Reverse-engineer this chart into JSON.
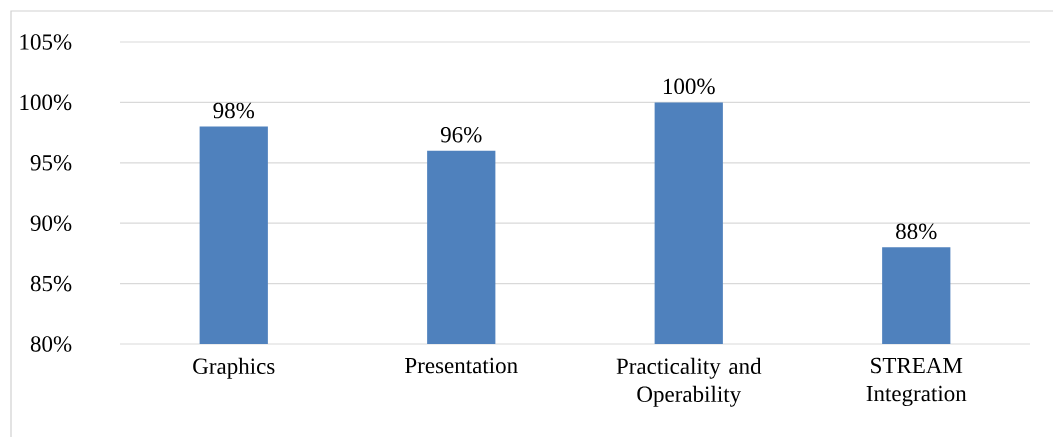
{
  "chart_data": {
    "type": "bar",
    "categories": [
      "Graphics",
      "Presentation",
      "Practicality and Operability",
      "STREAM Integration"
    ],
    "values": [
      98,
      96,
      100,
      88
    ],
    "value_labels": [
      "98%",
      "96%",
      "100%",
      "88%"
    ],
    "color": "#4f81bd",
    "ylim": [
      80,
      105
    ],
    "yticks": [
      {
        "value": 80,
        "label": "80%"
      },
      {
        "value": 85,
        "label": "85%"
      },
      {
        "value": 90,
        "label": "90%"
      },
      {
        "value": 95,
        "label": "95%"
      },
      {
        "value": 100,
        "label": "100%"
      },
      {
        "value": 105,
        "label": "105%"
      }
    ],
    "grid": "y"
  }
}
